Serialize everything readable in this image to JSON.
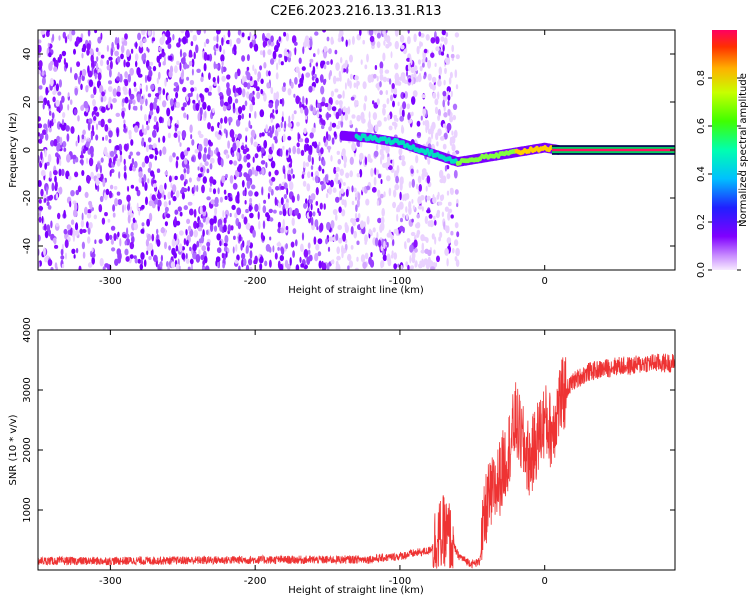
{
  "title": "C2E6.2023.216.13.31.R13",
  "chart_data": [
    {
      "type": "heatmap",
      "title": "",
      "xlabel": "Height of straight line (km)",
      "ylabel": "Frequency (Hz)",
      "xlim": [
        -350,
        90
      ],
      "ylim": [
        -50,
        50
      ],
      "xticks": [
        -300,
        -200,
        -100,
        0
      ],
      "yticks": [
        -40,
        -20,
        0,
        20,
        40
      ],
      "xtick_labels": [
        "-300",
        "-200",
        "-100",
        "0"
      ],
      "ytick_labels": [
        "-40",
        "-20",
        "0",
        "20",
        "40"
      ],
      "colorbar": {
        "label": "Normalized spectral amplitude",
        "range": [
          0,
          1
        ],
        "ticks": [
          0.0,
          0.2,
          0.4,
          0.6,
          0.8
        ],
        "tick_labels": [
          "0.0",
          "0.2",
          "0.4",
          "0.6",
          "0.8"
        ]
      },
      "ridge": {
        "x": [
          -140,
          -120,
          -100,
          -85,
          -70,
          -60,
          -50,
          -40,
          -30,
          -20,
          -10,
          0,
          10,
          90
        ],
        "y": [
          6,
          5,
          3,
          0,
          -3,
          -5,
          -4,
          -3,
          -2,
          -1,
          0,
          1,
          0,
          0
        ]
      },
      "noise_floor_x": [
        -350,
        -60
      ],
      "grid": false
    },
    {
      "type": "line",
      "title": "",
      "xlabel": "Height of straight line (km)",
      "ylabel": "SNR (10 * v/v)",
      "xlim": [
        -350,
        90
      ],
      "ylim": [
        0,
        4000
      ],
      "xticks": [
        -300,
        -200,
        -100,
        0
      ],
      "yticks": [
        1000,
        2000,
        3000,
        4000
      ],
      "xtick_labels": [
        "-300",
        "-200",
        "-100",
        "0"
      ],
      "ytick_labels": [
        "1000",
        "2000",
        "3000",
        "4000"
      ],
      "series": [
        {
          "color": "#ee3333",
          "x": [
            -350,
            -300,
            -250,
            -200,
            -150,
            -120,
            -100,
            -90,
            -80,
            -70,
            -65,
            -60,
            -55,
            -50,
            -45,
            -40,
            -35,
            -30,
            -25,
            -20,
            -15,
            -10,
            -5,
            0,
            5,
            10,
            15,
            20,
            30,
            40,
            50,
            60,
            70,
            80,
            90
          ],
          "y": [
            150,
            150,
            160,
            170,
            170,
            180,
            230,
            280,
            320,
            600,
            520,
            250,
            160,
            100,
            140,
            1100,
            1300,
            1600,
            2000,
            2500,
            2100,
            1800,
            2200,
            2500,
            2300,
            2800,
            3000,
            3150,
            3300,
            3350,
            3400,
            3400,
            3450,
            3450,
            3450
          ]
        }
      ],
      "grid": false
    }
  ]
}
